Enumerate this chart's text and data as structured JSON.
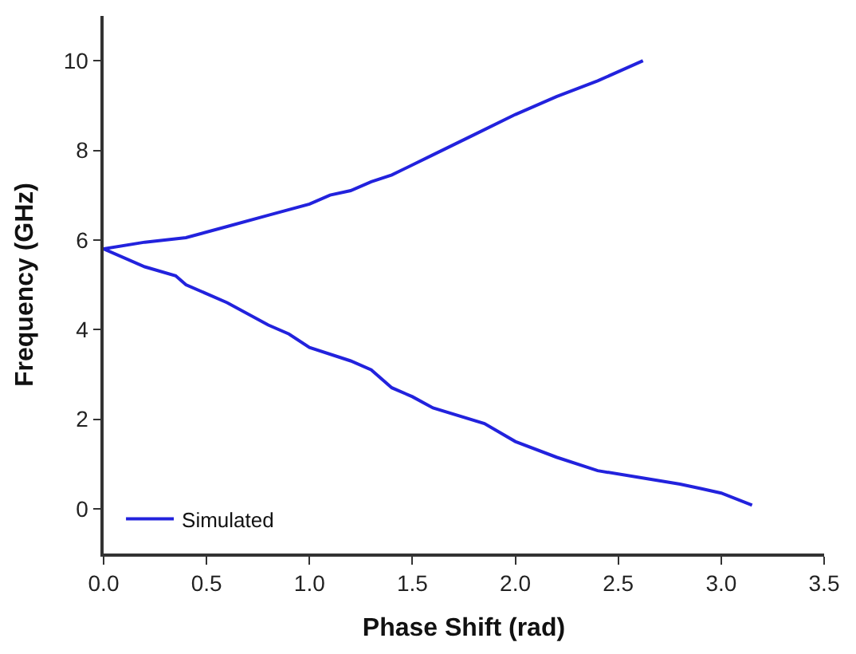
{
  "chart_data": {
    "type": "line",
    "xlabel": "Phase Shift (rad)",
    "ylabel": "Frequency (GHz)",
    "xlim": [
      0,
      3.5
    ],
    "xticks": [
      {
        "value": 0,
        "label": "0.0"
      },
      0.5,
      {
        "value": 1,
        "label": "1.0"
      },
      1.5,
      {
        "value": 2,
        "label": "2.0"
      },
      2.5,
      {
        "value": 3,
        "label": "3.0"
      },
      3.5
    ],
    "ylim": [
      -1,
      11
    ],
    "yticks": [
      0,
      2,
      4,
      6,
      8,
      10
    ],
    "legend": "bottom left",
    "marker": "none",
    "line_style": "solid",
    "series": [
      {
        "name": "Simulated",
        "color": "#2222dd",
        "x": [
          2.62,
          2.4,
          2.2,
          2.0,
          1.8,
          1.6,
          1.4,
          1.3,
          1.2,
          1.1,
          1.0,
          0.8,
          0.6,
          0.4,
          0.2,
          0,
          0.2,
          0.35,
          0.4,
          0.6,
          0.8,
          0.9,
          1.0,
          1.2,
          1.3,
          1.4,
          1.5,
          1.6,
          1.85,
          2.0,
          2.2,
          2.4,
          2.6,
          2.8,
          2.9,
          3.0,
          3.15
        ],
        "values": [
          10.0,
          9.55,
          9.2,
          8.8,
          8.35,
          7.9,
          7.45,
          7.3,
          7.1,
          7.0,
          6.8,
          6.55,
          6.3,
          6.05,
          5.95,
          5.8,
          5.4,
          5.2,
          5.0,
          4.6,
          4.1,
          3.9,
          3.6,
          3.3,
          3.1,
          2.7,
          2.5,
          2.25,
          1.9,
          1.5,
          1.15,
          0.85,
          0.7,
          0.55,
          0.45,
          0.35,
          0.08
        ]
      }
    ]
  }
}
